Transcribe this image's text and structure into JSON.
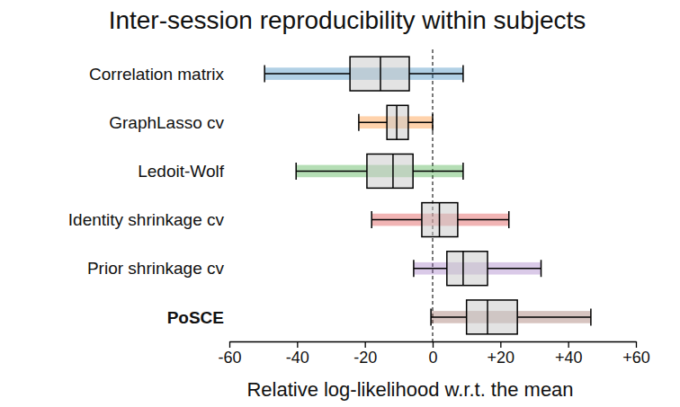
{
  "chart_data": {
    "type": "box",
    "orientation": "horizontal",
    "title": "Inter-session reproducibility within subjects",
    "x_label": "Relative log-likelihood w.r.t. the mean",
    "categories": [
      "Correlation matrix",
      "GraphLasso cv",
      "Ledoit-Wolf",
      "Identity shrinkage cv",
      "Prior shrinkage cv",
      "PoSCE"
    ],
    "boxes": [
      {
        "whislo": -49.6,
        "q1": -24.4,
        "med": -15.4,
        "q3": -6.9,
        "whishi": 9
      },
      {
        "whislo": -21.8,
        "q1": -13.5,
        "med": -10.6,
        "q3": -7.2,
        "whishi": 0
      },
      {
        "whislo": -40.3,
        "q1": -19.4,
        "med": -11.7,
        "q3": -5.8,
        "whishi": 9
      },
      {
        "whislo": -18,
        "q1": -3.2,
        "med": 2,
        "q3": 7.4,
        "whishi": 22.5
      },
      {
        "whislo": -5.6,
        "q1": 4.2,
        "med": 9,
        "q3": 16.2,
        "whishi": 32
      },
      {
        "whislo": -0.5,
        "q1": 10,
        "med": 16.2,
        "q3": 25,
        "whishi": 46.7
      }
    ],
    "colors": [
      "#1f77b4",
      "#ff7f0e",
      "#2ca02c",
      "#d62728",
      "#9467bd",
      "#8c564b"
    ],
    "vline": 0,
    "xlim": [
      -60,
      60
    ],
    "xticks": [
      -60,
      -40,
      -20,
      0,
      {
        "value": 20,
        "label": "+20"
      },
      {
        "value": 40,
        "label": "+40"
      },
      {
        "value": 60,
        "label": "+60"
      }
    ],
    "grid": false
  }
}
